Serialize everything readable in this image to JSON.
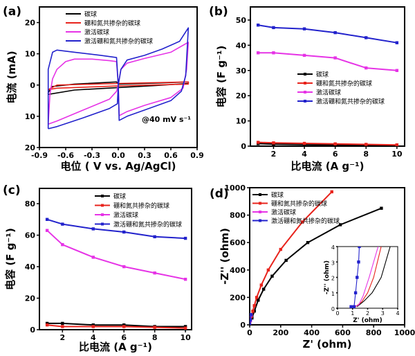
{
  "colors": {
    "black": "#000000",
    "red": "#e8231c",
    "magenta": "#e633e6",
    "blue": "#2222cc"
  },
  "chart_data": [
    {
      "panel": "(a)",
      "type": "line",
      "xlabel": "电位 ( V vs. Ag/AgCl)",
      "ylabel": "电流 (mA)",
      "xlim": [
        -0.9,
        0.9
      ],
      "ylim": [
        -20,
        25
      ],
      "xticks": [
        {
          "v": -0.9,
          "label": "-0.9"
        },
        {
          "v": -0.6,
          "label": "-0.6"
        },
        {
          "v": -0.3,
          "label": "-0.3"
        },
        {
          "v": 0,
          "label": "0.0"
        },
        {
          "v": 0.3,
          "label": "0.3"
        },
        {
          "v": 0.6,
          "label": "0.6"
        },
        {
          "v": 0.9,
          "label": "0.9"
        }
      ],
      "yticks": [
        {
          "v": 20,
          "label": "20"
        },
        {
          "v": 10,
          "label": "10"
        },
        {
          "v": 0,
          "label": "0"
        },
        {
          "v": -10,
          "label": "10"
        },
        {
          "v": -20,
          "label": "20"
        }
      ],
      "annotation": "@40 mV s⁻¹",
      "legend_position": "top-left",
      "markers": false,
      "series": [
        {
          "name": "碳球",
          "color": "black",
          "points": [
            [
              -0.8,
              -2.5
            ],
            [
              -0.76,
              -0.5
            ],
            [
              -0.5,
              0.3
            ],
            [
              -0.02,
              1
            ],
            [
              0,
              0.3
            ],
            [
              0.4,
              0.6
            ],
            [
              0.8,
              1
            ],
            [
              0.8,
              0.5
            ],
            [
              0.4,
              -0.2
            ],
            [
              0,
              -0.8
            ],
            [
              -0.5,
              -1.6
            ],
            [
              -0.8,
              -3
            ],
            [
              -0.8,
              -2.5
            ]
          ]
        },
        {
          "name": "硼和氮共掺杂的碳球",
          "color": "red",
          "points": [
            [
              -0.8,
              -1.5
            ],
            [
              -0.7,
              0
            ],
            [
              0,
              0.5
            ],
            [
              0.8,
              1
            ],
            [
              0.8,
              0.3
            ],
            [
              0,
              -0.3
            ],
            [
              -0.7,
              -1
            ],
            [
              -0.8,
              -1.5
            ]
          ]
        },
        {
          "name": "激活碳球",
          "color": "magenta",
          "points": [
            [
              -0.8,
              -12.5
            ],
            [
              -0.78,
              -3
            ],
            [
              -0.75,
              2
            ],
            [
              -0.7,
              5
            ],
            [
              -0.6,
              7.5
            ],
            [
              -0.5,
              8.3
            ],
            [
              -0.3,
              8.3
            ],
            [
              -0.1,
              7.8
            ],
            [
              -0.02,
              7.5
            ],
            [
              0,
              0
            ],
            [
              0.01,
              -9.8
            ],
            [
              0.1,
              -8.5
            ],
            [
              0.3,
              -6.5
            ],
            [
              0.6,
              -4
            ],
            [
              0.74,
              -1
            ],
            [
              0.78,
              5
            ],
            [
              0.8,
              13.7
            ],
            [
              0.6,
              10.5
            ],
            [
              0.3,
              8.5
            ],
            [
              0.1,
              7
            ],
            [
              0.03,
              5
            ],
            [
              0,
              0
            ],
            [
              -0.02,
              -2
            ],
            [
              -0.1,
              -4.5
            ],
            [
              -0.4,
              -8
            ],
            [
              -0.7,
              -11.5
            ],
            [
              -0.8,
              -12.5
            ]
          ]
        },
        {
          "name": "激活硼和氮共掺杂的碳球",
          "color": "blue",
          "points": [
            [
              -0.8,
              -14
            ],
            [
              -0.8,
              5
            ],
            [
              -0.75,
              10.5
            ],
            [
              -0.7,
              11.2
            ],
            [
              -0.5,
              10.5
            ],
            [
              -0.2,
              9.5
            ],
            [
              -0.02,
              8.8
            ],
            [
              0,
              0
            ],
            [
              0.01,
              -11.3
            ],
            [
              0.1,
              -10
            ],
            [
              0.3,
              -8
            ],
            [
              0.6,
              -5
            ],
            [
              0.72,
              -2
            ],
            [
              0.77,
              3
            ],
            [
              0.8,
              18.3
            ],
            [
              0.7,
              14
            ],
            [
              0.5,
              11.5
            ],
            [
              0.3,
              9.5
            ],
            [
              0.1,
              8
            ],
            [
              0.03,
              5
            ],
            [
              0,
              0
            ],
            [
              -0.01,
              -6
            ],
            [
              -0.1,
              -7.5
            ],
            [
              -0.4,
              -10.5
            ],
            [
              -0.7,
              -13.3
            ],
            [
              -0.8,
              -14
            ]
          ]
        }
      ]
    },
    {
      "panel": "(b)",
      "type": "line",
      "xlabel": "比电流 (A g⁻¹)",
      "ylabel": "电容 (F g⁻¹)",
      "xlim": [
        0.5,
        10.5
      ],
      "ylim": [
        0,
        55.2
      ],
      "xticks": [
        {
          "v": 2,
          "label": "2"
        },
        {
          "v": 4,
          "label": "4"
        },
        {
          "v": 6,
          "label": "6"
        },
        {
          "v": 8,
          "label": "8"
        },
        {
          "v": 10,
          "label": "10"
        }
      ],
      "yticks": [
        {
          "v": 0,
          "label": "0"
        },
        {
          "v": 10,
          "label": "10"
        },
        {
          "v": 20,
          "label": "20"
        },
        {
          "v": 30,
          "label": "30"
        },
        {
          "v": 40,
          "label": "40"
        },
        {
          "v": 50,
          "label": "50"
        }
      ],
      "legend_position": "center-right",
      "markers": true,
      "x": [
        1,
        2,
        4,
        6,
        8,
        10
      ],
      "series": [
        {
          "name": "碳球",
          "color": "black",
          "values": [
            1,
            0.8,
            0.6,
            0.5,
            0.4,
            0.3
          ]
        },
        {
          "name": "硼和氮共掺杂的碳球",
          "color": "red",
          "values": [
            1.5,
            1.3,
            1.1,
            0.9,
            0.7,
            0.5
          ]
        },
        {
          "name": "激活碳球",
          "color": "magenta",
          "values": [
            37,
            37,
            36,
            35,
            31,
            30
          ]
        },
        {
          "name": "激活硼和氮共掺杂的碳球",
          "color": "blue",
          "values": [
            48,
            47,
            46.5,
            45,
            43,
            41
          ]
        }
      ]
    },
    {
      "panel": "(c)",
      "type": "line",
      "xlabel": "比电流 (A g⁻¹)",
      "ylabel": "电容 (F g⁻¹)",
      "xlim": [
        0.5,
        10.4
      ],
      "ylim": [
        0,
        89.7
      ],
      "xticks": [
        {
          "v": 2,
          "label": "2"
        },
        {
          "v": 4,
          "label": "4"
        },
        {
          "v": 6,
          "label": "6"
        },
        {
          "v": 8,
          "label": "8"
        },
        {
          "v": 10,
          "label": "10"
        }
      ],
      "yticks": [
        {
          "v": 0,
          "label": "0"
        },
        {
          "v": 20,
          "label": "20"
        },
        {
          "v": 40,
          "label": "40"
        },
        {
          "v": 60,
          "label": "60"
        },
        {
          "v": 80,
          "label": "80"
        }
      ],
      "legend_position": "top",
      "markers": true,
      "x": [
        1,
        2,
        4,
        6,
        8,
        10
      ],
      "series": [
        {
          "name": "碳球",
          "color": "black",
          "values": [
            4,
            4,
            3,
            3,
            2,
            2
          ]
        },
        {
          "name": "硼和氮共掺杂的碳球",
          "color": "red",
          "values": [
            3,
            2,
            2,
            2,
            1.5,
            1
          ]
        },
        {
          "name": "激活碳球",
          "color": "magenta",
          "values": [
            63,
            54,
            46,
            40,
            36,
            32
          ]
        },
        {
          "name": "激活硼和氮共掺杂的碳球",
          "color": "blue",
          "values": [
            70,
            67,
            64,
            62,
            59,
            58
          ]
        }
      ]
    },
    {
      "panel": "(d)",
      "type": "line",
      "xlabel": "Z' (ohm)",
      "ylabel": "-Z'' (ohm)",
      "xlim": [
        0,
        1000
      ],
      "ylim": [
        0,
        1000
      ],
      "xticks": [
        {
          "v": 0,
          "label": "0"
        },
        {
          "v": 200,
          "label": "200"
        },
        {
          "v": 400,
          "label": "400"
        },
        {
          "v": 600,
          "label": "600"
        },
        {
          "v": 800,
          "label": "800"
        },
        {
          "v": 1000,
          "label": "1000"
        }
      ],
      "yticks": [
        {
          "v": 0,
          "label": "0"
        },
        {
          "v": 200,
          "label": "200"
        },
        {
          "v": 400,
          "label": "400"
        },
        {
          "v": 600,
          "label": "600"
        },
        {
          "v": 800,
          "label": "800"
        },
        {
          "v": 1000,
          "label": "1000"
        }
      ],
      "legend_position": "top-left",
      "markers": true,
      "series": [
        {
          "name": "碳球",
          "color": "black",
          "points": [
            [
              0,
              0
            ],
            [
              15,
              50
            ],
            [
              30,
              100
            ],
            [
              55,
              180
            ],
            [
              90,
              260
            ],
            [
              145,
              355
            ],
            [
              235,
              470
            ],
            [
              375,
              600
            ],
            [
              585,
              730
            ],
            [
              850,
              850
            ]
          ]
        },
        {
          "name": "硼和氮共掺杂的碳球",
          "color": "red",
          "points": [
            [
              0,
              0
            ],
            [
              10,
              60
            ],
            [
              20,
              100
            ],
            [
              30,
              140
            ],
            [
              45,
              200
            ],
            [
              75,
              290
            ],
            [
              120,
              400
            ],
            [
              200,
              550
            ],
            [
              340,
              750
            ],
            [
              530,
              970
            ]
          ]
        },
        {
          "name": "激活碳球",
          "color": "magenta",
          "points": [
            [
              0,
              0
            ],
            [
              5,
              30
            ],
            [
              10,
              70
            ]
          ]
        },
        {
          "name": "激活硼和氮共掺杂的碳球",
          "color": "blue",
          "points": [
            [
              0,
              0
            ],
            [
              4,
              35
            ],
            [
              8,
              75
            ]
          ]
        }
      ],
      "inset": {
        "xlabel": "Z' (ohm)",
        "ylabel": "-Z'' (ohm)",
        "xlim": [
          0,
          4
        ],
        "ylim": [
          0,
          4
        ],
        "xticks": [
          {
            "v": 0,
            "label": "0"
          },
          {
            "v": 1,
            "label": "1"
          },
          {
            "v": 2,
            "label": "2"
          },
          {
            "v": 3,
            "label": "3"
          },
          {
            "v": 4,
            "label": "4"
          }
        ],
        "yticks": [
          {
            "v": 0,
            "label": "0"
          },
          {
            "v": 1,
            "label": "1"
          },
          {
            "v": 2,
            "label": "2"
          },
          {
            "v": 3,
            "label": "3"
          },
          {
            "v": 4,
            "label": "4"
          }
        ],
        "series": [
          {
            "color": "black",
            "points": [
              [
                1.3,
                0.1
              ],
              [
                1.8,
                0.5
              ],
              [
                2.3,
                1
              ],
              [
                2.9,
                2
              ],
              [
                3.5,
                4
              ]
            ]
          },
          {
            "color": "red",
            "points": [
              [
                1.2,
                0.1
              ],
              [
                1.6,
                0.4
              ],
              [
                2.0,
                1
              ],
              [
                2.4,
                2
              ],
              [
                2.9,
                4
              ]
            ]
          },
          {
            "color": "magenta",
            "points": [
              [
                1.0,
                0.1
              ],
              [
                1.4,
                0.2
              ],
              [
                1.7,
                0.8
              ],
              [
                2.1,
                2
              ],
              [
                2.7,
                4
              ]
            ]
          },
          {
            "color": "blue",
            "points": [
              [
                0.9,
                0.1
              ],
              [
                1.1,
                0.1
              ],
              [
                1.2,
                1
              ],
              [
                1.3,
                2
              ],
              [
                1.4,
                3
              ],
              [
                1.45,
                4
              ]
            ]
          }
        ]
      }
    }
  ]
}
